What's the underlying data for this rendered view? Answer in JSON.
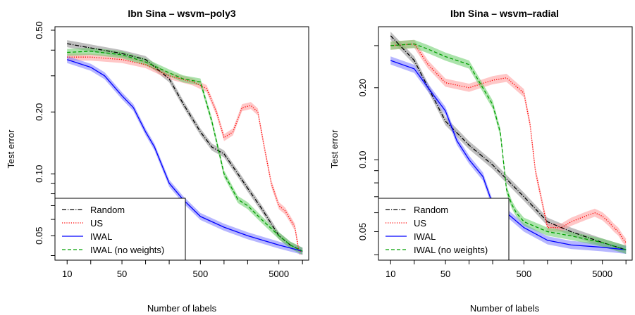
{
  "chart_data": [
    {
      "type": "line",
      "title": "Ibn Sina – wsvm–poly3",
      "xlabel": "Number of labels",
      "ylabel": "Test error",
      "x_scale": "log",
      "y_scale": "log",
      "xlim": [
        7,
        12000
      ],
      "ylim": [
        0.038,
        0.52
      ],
      "x_ticks": [
        10,
        50,
        500,
        5000
      ],
      "x_tick_labels": [
        "10",
        "50",
        "500",
        "5000"
      ],
      "y_ticks": [
        0.05,
        0.1,
        0.2,
        0.5
      ],
      "y_tick_labels": [
        "0.05",
        "0.10",
        "0.20",
        "0.50"
      ],
      "legend_position": "bottom-left",
      "series": [
        {
          "name": "Random",
          "color": "#000000",
          "style": "dotdash",
          "band": "#8a8a8a",
          "x": [
            10,
            20,
            50,
            100,
            200,
            300,
            500,
            700,
            1000,
            1500,
            2000,
            3000,
            5000,
            7000,
            10000
          ],
          "y": [
            0.43,
            0.41,
            0.385,
            0.36,
            0.29,
            0.22,
            0.16,
            0.135,
            0.125,
            0.1,
            0.085,
            0.068,
            0.05,
            0.045,
            0.042
          ]
        },
        {
          "name": "US",
          "color": "#ff0000",
          "style": "dotted",
          "band": "#ff9999",
          "x": [
            10,
            20,
            50,
            100,
            200,
            400,
            600,
            800,
            1000,
            1300,
            1700,
            2200,
            2700,
            3200,
            4000,
            5000,
            6000,
            7000,
            8000,
            9000,
            10000
          ],
          "y": [
            0.37,
            0.37,
            0.36,
            0.34,
            0.3,
            0.28,
            0.26,
            0.2,
            0.15,
            0.16,
            0.21,
            0.215,
            0.2,
            0.14,
            0.09,
            0.07,
            0.066,
            0.06,
            0.055,
            0.042,
            0.042
          ]
        },
        {
          "name": "IWAL",
          "color": "#0000ff",
          "style": "solid",
          "band": "#7a7aff",
          "x": [
            10,
            20,
            30,
            50,
            70,
            100,
            130,
            200,
            300,
            500,
            1000,
            2000,
            5000,
            10000
          ],
          "y": [
            0.36,
            0.33,
            0.3,
            0.24,
            0.21,
            0.16,
            0.135,
            0.09,
            0.075,
            0.062,
            0.055,
            0.05,
            0.045,
            0.042
          ]
        },
        {
          "name": "IWAL (no weights)",
          "color": "#00a000",
          "style": "dashed",
          "band": "#66cc66",
          "x": [
            10,
            20,
            50,
            100,
            200,
            300,
            500,
            700,
            1000,
            1500,
            2000,
            3000,
            5000,
            7000,
            10000
          ],
          "y": [
            0.39,
            0.395,
            0.38,
            0.35,
            0.31,
            0.29,
            0.28,
            0.18,
            0.1,
            0.075,
            0.07,
            0.06,
            0.05,
            0.045,
            0.042
          ]
        }
      ]
    },
    {
      "type": "line",
      "title": "Ibn Sina – wsvm–radial",
      "xlabel": "Number of labels",
      "ylabel": "Test error",
      "x_scale": "log",
      "y_scale": "log",
      "xlim": [
        7,
        12000
      ],
      "ylim": [
        0.038,
        0.36
      ],
      "x_ticks": [
        10,
        50,
        500,
        5000
      ],
      "x_tick_labels": [
        "10",
        "50",
        "500",
        "5000"
      ],
      "y_ticks": [
        0.05,
        0.1,
        0.2
      ],
      "y_tick_labels": [
        "0.05",
        "0.10",
        "0.20"
      ],
      "legend_position": "bottom-left",
      "series": [
        {
          "name": "Random",
          "color": "#000000",
          "style": "dotdash",
          "band": "#8a8a8a",
          "x": [
            10,
            20,
            50,
            100,
            200,
            500,
            1000,
            2000,
            5000,
            10000
          ],
          "y": [
            0.33,
            0.26,
            0.145,
            0.115,
            0.095,
            0.07,
            0.055,
            0.05,
            0.045,
            0.042
          ]
        },
        {
          "name": "US",
          "color": "#ff0000",
          "style": "dotted",
          "band": "#ff9999",
          "x": [
            10,
            20,
            30,
            50,
            100,
            200,
            300,
            500,
            600,
            700,
            1000,
            1500,
            2000,
            3000,
            4000,
            5000,
            6000,
            7000,
            8000,
            9000,
            10000
          ],
          "y": [
            0.3,
            0.305,
            0.25,
            0.21,
            0.2,
            0.215,
            0.22,
            0.19,
            0.14,
            0.09,
            0.052,
            0.052,
            0.055,
            0.058,
            0.06,
            0.058,
            0.055,
            0.052,
            0.05,
            0.047,
            0.045
          ]
        },
        {
          "name": "IWAL",
          "color": "#0000ff",
          "style": "solid",
          "band": "#7a7aff",
          "x": [
            10,
            20,
            30,
            50,
            70,
            100,
            150,
            200,
            300,
            500,
            1000,
            2000,
            5000,
            10000
          ],
          "y": [
            0.26,
            0.24,
            0.2,
            0.16,
            0.12,
            0.1,
            0.085,
            0.065,
            0.06,
            0.052,
            0.046,
            0.044,
            0.043,
            0.042
          ]
        },
        {
          "name": "IWAL (no weights)",
          "color": "#00a000",
          "style": "dashed",
          "band": "#66cc66",
          "x": [
            10,
            20,
            30,
            50,
            100,
            200,
            250,
            300,
            350,
            400,
            500,
            1000,
            2000,
            5000,
            10000
          ],
          "y": [
            0.3,
            0.305,
            0.29,
            0.27,
            0.25,
            0.17,
            0.13,
            0.075,
            0.065,
            0.06,
            0.055,
            0.05,
            0.048,
            0.045,
            0.042
          ]
        }
      ]
    }
  ]
}
